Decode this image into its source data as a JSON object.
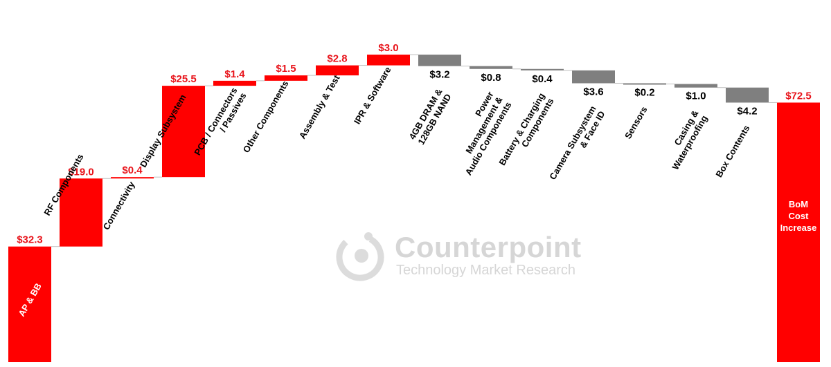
{
  "chart_data": {
    "type": "bar",
    "subtype": "waterfall",
    "title": "",
    "xlabel": "",
    "ylabel": "",
    "ylim": [
      0,
      80
    ],
    "grid": false,
    "legend": "none",
    "colors": {
      "increase": "#ff0000",
      "decrease": "#7f7f7f",
      "total": "#ff0000",
      "increase_label": "#e8141b",
      "decrease_label": "#000000",
      "total_inner_label": "#ffffff"
    },
    "categories": [
      "AP & BB",
      "RF Components",
      "Connectivity",
      "Display Subsystem",
      "PCB / Connectors / Passives",
      "Other Components",
      "Assembly & Test",
      "IPR & Software",
      "4GB DRAM & 128GB NAND",
      "Power Management & Audio Components",
      "Battery & Charging Components",
      "Camera Subsystem & Face ID",
      "Sensors",
      "Casing & Waterproofing",
      "Box Contents",
      "BoM Cost Increase"
    ],
    "category_label_lines": [
      [
        "AP & BB"
      ],
      [
        "RF Components"
      ],
      [
        "Connectivity"
      ],
      [
        "Display Subsystem"
      ],
      [
        "PCB / Connectors",
        "/ Passives"
      ],
      [
        "Other Components"
      ],
      [
        "Assembly & Test"
      ],
      [
        "IPR & Software"
      ],
      [
        "4GB DRAM &",
        "128GB NAND"
      ],
      [
        "Power",
        "Management &",
        "Audio Components"
      ],
      [
        "Battery & Charging",
        "Components"
      ],
      [
        "Camera Subsystem",
        "& Face ID"
      ],
      [
        "Sensors"
      ],
      [
        "Casing &",
        "Waterproofing"
      ],
      [
        "Box Contents"
      ],
      [
        "BoM",
        "Cost",
        "Increase"
      ]
    ],
    "values": [
      32.3,
      19.0,
      0.4,
      25.5,
      1.4,
      1.5,
      2.8,
      3.0,
      -3.2,
      -0.8,
      -0.4,
      -3.6,
      -0.2,
      -1.0,
      -4.2,
      72.5
    ],
    "kinds": [
      "increase",
      "increase",
      "increase",
      "increase",
      "increase",
      "increase",
      "increase",
      "increase",
      "decrease",
      "decrease",
      "decrease",
      "decrease",
      "decrease",
      "decrease",
      "decrease",
      "total"
    ],
    "value_labels": [
      "$32.3",
      "$19.0",
      "$0.4",
      "$25.5",
      "$1.4",
      "$1.5",
      "$2.8",
      "$3.0",
      "$3.2",
      "$0.8",
      "$0.4",
      "$3.6",
      "$0.2",
      "$1.0",
      "$4.2",
      "$72.5"
    ]
  },
  "watermark": {
    "name": "Counterpoint",
    "tagline": "Technology Market Research"
  }
}
